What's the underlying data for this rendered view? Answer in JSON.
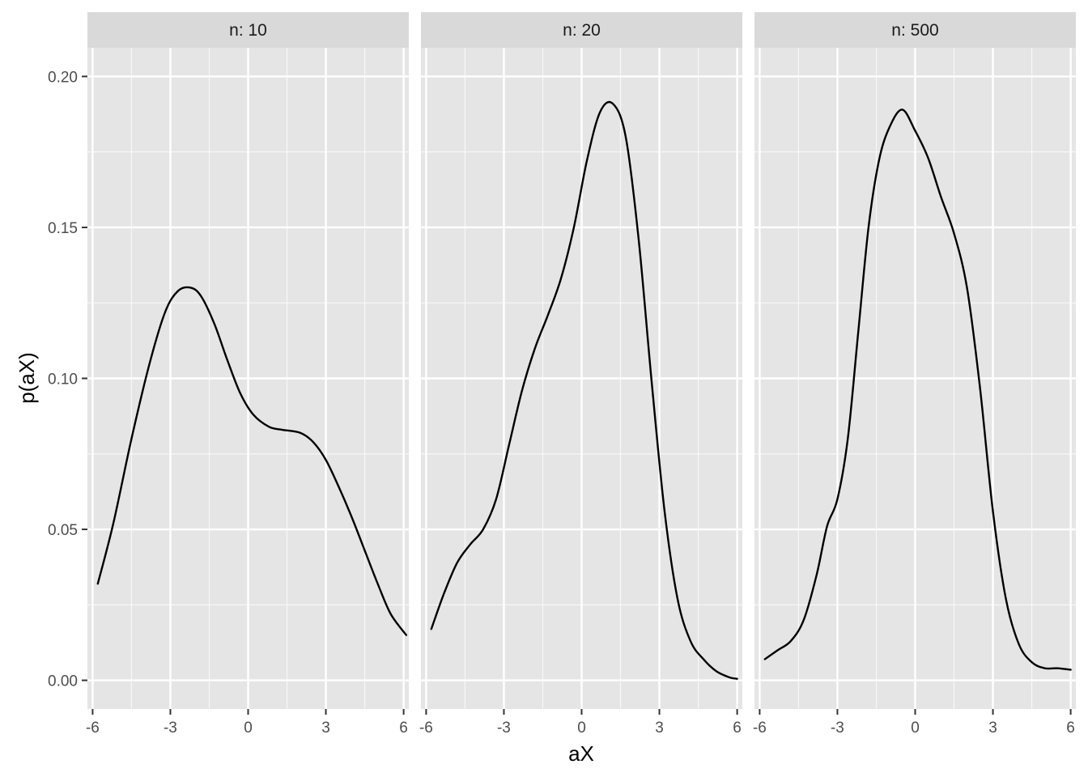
{
  "chart_data": {
    "type": "line",
    "xlabel": "aX",
    "ylabel": "p(aX)",
    "xlim": [
      -6.2,
      6.2
    ],
    "ylim": [
      -0.0095,
      0.2095
    ],
    "x_ticks": [
      -6,
      -3,
      0,
      3,
      6
    ],
    "x_tick_labels": [
      "-6",
      "-3",
      "0",
      "3",
      "6"
    ],
    "x_minor_ticks": [
      -4.5,
      -1.5,
      1.5,
      4.5
    ],
    "y_ticks": [
      0.0,
      0.05,
      0.1,
      0.15,
      0.2
    ],
    "y_tick_labels": [
      "0.00",
      "0.05",
      "0.10",
      "0.15",
      "0.20"
    ],
    "y_minor_ticks": [
      0.025,
      0.075,
      0.125,
      0.175
    ],
    "grid": true,
    "facets": [
      {
        "label": "n: 10",
        "x": [
          -5.8,
          -5.2,
          -4.5,
          -3.8,
          -3.2,
          -2.7,
          -2.2,
          -1.8,
          -1.3,
          -0.8,
          -0.3,
          0.2,
          0.8,
          1.3,
          2.0,
          2.5,
          3.0,
          3.5,
          4.0,
          4.5,
          5.0,
          5.5,
          6.1
        ],
        "y": [
          0.032,
          0.052,
          0.08,
          0.105,
          0.122,
          0.129,
          0.13,
          0.127,
          0.118,
          0.106,
          0.095,
          0.088,
          0.084,
          0.083,
          0.082,
          0.079,
          0.073,
          0.064,
          0.054,
          0.043,
          0.032,
          0.022,
          0.015
        ]
      },
      {
        "label": "n: 20",
        "x": [
          -5.8,
          -5.3,
          -4.8,
          -4.3,
          -3.8,
          -3.3,
          -2.8,
          -2.3,
          -1.8,
          -1.3,
          -0.8,
          -0.3,
          0.2,
          0.7,
          1.2,
          1.7,
          2.2,
          2.7,
          3.2,
          3.7,
          4.2,
          4.7,
          5.2,
          5.7,
          6.0
        ],
        "y": [
          0.017,
          0.029,
          0.039,
          0.045,
          0.05,
          0.06,
          0.078,
          0.096,
          0.11,
          0.121,
          0.133,
          0.15,
          0.172,
          0.188,
          0.191,
          0.18,
          0.146,
          0.099,
          0.056,
          0.027,
          0.013,
          0.007,
          0.003,
          0.001,
          0.0005
        ]
      },
      {
        "label": "n: 500",
        "x": [
          -5.8,
          -5.3,
          -4.8,
          -4.3,
          -3.8,
          -3.4,
          -3.0,
          -2.6,
          -2.2,
          -1.8,
          -1.4,
          -1.0,
          -0.5,
          0.0,
          0.5,
          1.0,
          1.5,
          2.0,
          2.5,
          3.0,
          3.5,
          4.0,
          4.5,
          5.0,
          5.5,
          6.0
        ],
        "y": [
          0.007,
          0.01,
          0.013,
          0.02,
          0.035,
          0.051,
          0.06,
          0.08,
          0.115,
          0.15,
          0.172,
          0.183,
          0.189,
          0.182,
          0.173,
          0.16,
          0.148,
          0.13,
          0.097,
          0.056,
          0.027,
          0.012,
          0.006,
          0.004,
          0.004,
          0.0035
        ]
      }
    ]
  }
}
